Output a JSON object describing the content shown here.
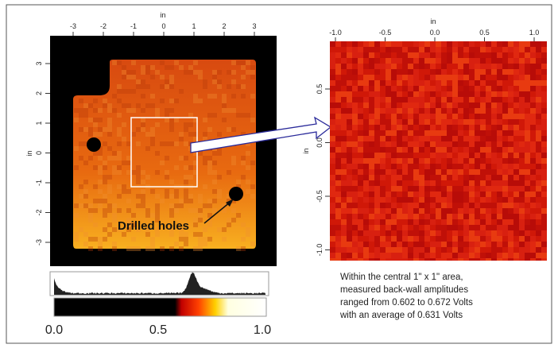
{
  "left_scan": {
    "x_axis_label": "in",
    "y_axis_label": "in",
    "x_ticks": [
      "-3",
      "-2",
      "-1",
      "0",
      "1",
      "2",
      "3"
    ],
    "y_ticks": [
      "3",
      "2",
      "1",
      "0",
      "-1",
      "-2",
      "-3"
    ],
    "annotation": "Drilled holes"
  },
  "colorbar": {
    "ticks": [
      "0.0",
      "0.5",
      "1.0"
    ]
  },
  "right_scan": {
    "x_axis_label": "in",
    "y_axis_label": "in",
    "x_ticks": [
      "-1.0",
      "-0.5",
      "0.0",
      "0.5",
      "1.0"
    ],
    "y_ticks": [
      "0.5",
      "0.0",
      "-0.5",
      "-1.0"
    ]
  },
  "caption": {
    "lines": [
      "Within the central 1\" x 1\" area,",
      "measured back-wall amplitudes",
      "ranged from 0.602 to 0.672  Volts",
      "with an average of 0.631  Volts"
    ]
  }
}
